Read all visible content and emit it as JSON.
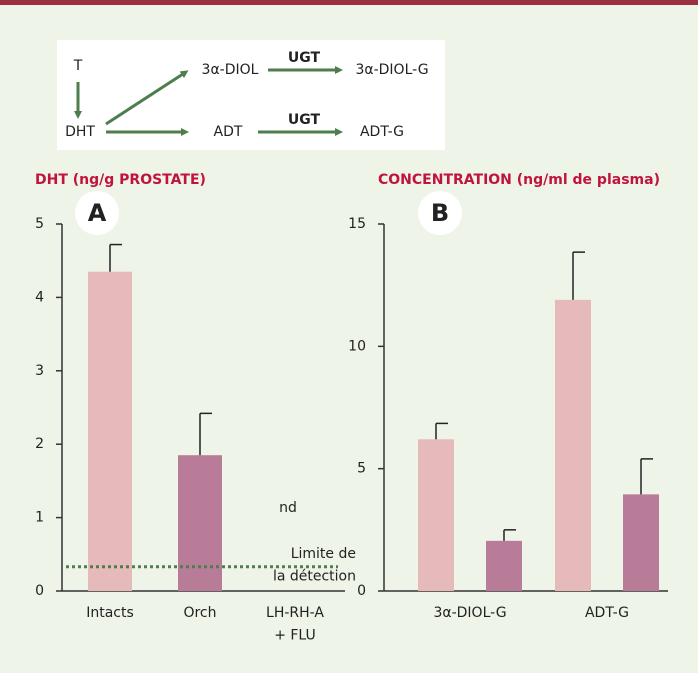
{
  "diagram": {
    "nodes": [
      {
        "label": "T"
      },
      {
        "label": "DHT"
      },
      {
        "label": "3α-DIOL"
      },
      {
        "label": "3α-DIOL-G"
      },
      {
        "label": "ADT"
      },
      {
        "label": "ADT-G"
      }
    ],
    "edge_labels": [
      "UGT",
      "UGT"
    ]
  },
  "chart_data": [
    {
      "type": "bar",
      "panel": "A",
      "title": "DHT (ng/g PROSTATE)",
      "categories": [
        "Intacts",
        "Orch",
        "LH-RH-A\n+ FLU"
      ],
      "values": [
        4.35,
        1.85,
        null
      ],
      "errors": [
        0.37,
        0.57,
        null
      ],
      "colors": [
        "#e6b9bb",
        "#b87b98",
        "#b87b98"
      ],
      "annotation": "nd",
      "detection_limit": 0.33,
      "detection_label": "Limite de\nla détection",
      "ylim": [
        0,
        5
      ],
      "yticks": [
        0,
        1,
        2,
        3,
        4,
        5
      ]
    },
    {
      "type": "bar",
      "panel": "B",
      "title": "CONCENTRATION (ng/ml de plasma)",
      "categories": [
        "3α-DIOL-G",
        "ADT-G"
      ],
      "series": [
        {
          "color": "#e6b9bb",
          "values": [
            6.2,
            11.9
          ],
          "errors": [
            0.65,
            1.95
          ]
        },
        {
          "color": "#b87b98",
          "values": [
            2.05,
            3.95
          ],
          "errors": [
            0.45,
            1.45
          ]
        }
      ],
      "ylim": [
        0,
        15
      ],
      "yticks": [
        0,
        5,
        10,
        15
      ]
    }
  ]
}
